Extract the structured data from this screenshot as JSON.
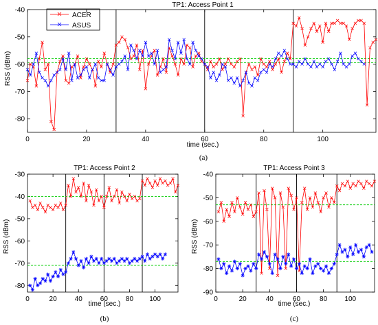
{
  "colors": {
    "acer": "#ff0000",
    "asus": "#0000ff",
    "mean_line": "#00cc00"
  },
  "chart_data": [
    {
      "type": "line",
      "title": "TP1: Access Point 1",
      "xlabel": "time (sec.)",
      "ylabel": "RSS (dBm)",
      "caption": "(a)",
      "xlim": [
        0,
        118
      ],
      "ylim": [
        -85,
        -40
      ],
      "xticks": [
        0,
        20,
        40,
        60,
        80,
        100
      ],
      "yticks": [
        -80,
        -70,
        -60,
        -50,
        -40
      ],
      "vlines": [
        30,
        60,
        90
      ],
      "mean_lines": [
        -58,
        -59.5
      ],
      "legend": {
        "position": "top-left",
        "entries": [
          "ACER",
          "ASUS"
        ]
      },
      "series": [
        {
          "name": "ACER",
          "color_key": "acer",
          "marker": "x",
          "x": [
            0,
            1,
            2,
            3,
            4,
            5,
            6,
            7,
            8,
            9,
            10,
            11,
            12,
            13,
            14,
            15,
            16,
            17,
            18,
            19,
            20,
            21,
            22,
            23,
            24,
            25,
            26,
            27,
            28,
            29,
            30,
            31,
            32,
            33,
            34,
            35,
            36,
            37,
            38,
            39,
            40,
            41,
            42,
            43,
            44,
            45,
            46,
            47,
            48,
            49,
            50,
            51,
            52,
            53,
            54,
            55,
            56,
            57,
            58,
            59,
            60,
            61,
            62,
            63,
            64,
            65,
            66,
            67,
            68,
            69,
            70,
            71,
            72,
            73,
            74,
            75,
            76,
            77,
            78,
            79,
            80,
            81,
            82,
            83,
            84,
            85,
            86,
            87,
            88,
            89,
            90,
            91,
            92,
            93,
            94,
            95,
            96,
            97,
            98,
            99,
            100,
            101,
            102,
            103,
            104,
            105,
            106,
            107,
            108,
            109,
            110,
            111,
            112,
            113,
            114,
            115,
            116,
            117,
            118
          ],
          "y": [
            -66,
            -60,
            -61,
            -68,
            -58,
            -52,
            -62,
            -60,
            -81,
            -84,
            -63,
            -59,
            -57,
            -66,
            -67,
            -61,
            -60,
            -57,
            -65,
            -61,
            -58,
            -60,
            -62,
            -68,
            -59,
            -61,
            -56,
            -60,
            -63,
            -60,
            -53,
            -52,
            -50,
            -51,
            -54,
            -58,
            -57,
            -53,
            -62,
            -55,
            -69,
            -60,
            -57,
            -55,
            -64,
            -61,
            -58,
            -63,
            -54,
            -57,
            -60,
            -64,
            -58,
            -60,
            -53,
            -54,
            -61,
            -57,
            -56,
            -59,
            -60,
            -62,
            -59,
            -61,
            -60,
            -58,
            -62,
            -60,
            -58,
            -60,
            -61,
            -59,
            -58,
            -79,
            -63,
            -60,
            -62,
            -61,
            -64,
            -58,
            -60,
            -61,
            -59,
            -62,
            -60,
            -58,
            -63,
            -59,
            -56,
            -58,
            -45,
            -46,
            -43,
            -47,
            -53,
            -50,
            -47,
            -45,
            -48,
            -46,
            -52,
            -45,
            -48,
            -45,
            -45,
            -44,
            -45,
            -45,
            -46,
            -51,
            -47,
            -45,
            -44,
            -44,
            -45,
            -75,
            -54,
            -52,
            -51
          ]
        },
        {
          "name": "ASUS",
          "color_key": "asus",
          "marker": "x",
          "x": [
            0,
            1,
            2,
            3,
            4,
            5,
            6,
            7,
            8,
            9,
            10,
            11,
            12,
            13,
            14,
            15,
            16,
            17,
            18,
            19,
            20,
            21,
            22,
            23,
            24,
            25,
            26,
            27,
            28,
            29,
            30,
            31,
            32,
            33,
            34,
            35,
            36,
            37,
            38,
            39,
            40,
            41,
            42,
            43,
            44,
            45,
            46,
            47,
            48,
            49,
            50,
            51,
            52,
            53,
            54,
            55,
            56,
            57,
            58,
            59,
            60,
            61,
            62,
            63,
            64,
            65,
            66,
            67,
            68,
            69,
            70,
            71,
            72,
            73,
            74,
            75,
            76,
            77,
            78,
            79,
            80,
            81,
            82,
            83,
            84,
            85,
            86,
            87,
            88,
            89,
            90,
            91,
            92,
            93,
            94,
            95,
            96,
            97,
            98,
            99,
            100,
            101,
            102,
            103,
            104,
            105,
            106,
            107,
            108,
            109,
            110,
            111,
            112,
            113,
            114
          ],
          "y": [
            -62,
            -64,
            -60,
            -56,
            -63,
            -65,
            -66,
            -68,
            -66,
            -64,
            -63,
            -62,
            -58,
            -62,
            -56,
            -66,
            -60,
            -65,
            -64,
            -62,
            -61,
            -65,
            -62,
            -60,
            -65,
            -66,
            -66,
            -60,
            -62,
            -64,
            -61,
            -60,
            -59,
            -57,
            -62,
            -53,
            -55,
            -58,
            -55,
            -57,
            -52,
            -57,
            -56,
            -60,
            -55,
            -63,
            -62,
            -61,
            -51,
            -55,
            -58,
            -52,
            -56,
            -51,
            -58,
            -60,
            -52,
            -55,
            -57,
            -58,
            -60,
            -61,
            -65,
            -63,
            -66,
            -64,
            -60,
            -61,
            -66,
            -65,
            -67,
            -65,
            -68,
            -66,
            -63,
            -67,
            -68,
            -65,
            -66,
            -63,
            -62,
            -63,
            -60,
            -61,
            -58,
            -56,
            -57,
            -55,
            -58,
            -60,
            -60,
            -61,
            -59,
            -60,
            -58,
            -60,
            -61,
            -59,
            -61,
            -60,
            -61,
            -59,
            -58,
            -60,
            -62,
            -59,
            -56,
            -60,
            -61,
            -60,
            -57,
            -56,
            -58,
            -59,
            -60
          ]
        }
      ]
    },
    {
      "type": "line",
      "title": "TP1: Access Point 2",
      "xlabel": "time (sec.)",
      "ylabel": "RSS (dBm)",
      "caption": "(b)",
      "xlim": [
        0,
        118
      ],
      "ylim": [
        -83,
        -30
      ],
      "xticks": [
        0,
        20,
        40,
        60,
        80,
        100
      ],
      "yticks": [
        -80,
        -70,
        -60,
        -50,
        -40,
        -30
      ],
      "vlines": [
        30,
        60,
        90
      ],
      "mean_lines": [
        -40,
        -71
      ],
      "series": [
        {
          "name": "ACER",
          "color_key": "acer",
          "marker": "x",
          "x": [
            2,
            4,
            6,
            8,
            10,
            12,
            14,
            16,
            18,
            20,
            22,
            24,
            26,
            28,
            30,
            32,
            34,
            36,
            38,
            40,
            42,
            44,
            46,
            48,
            50,
            52,
            54,
            56,
            58,
            60,
            62,
            64,
            66,
            68,
            70,
            72,
            74,
            76,
            78,
            80,
            82,
            84,
            86,
            88,
            90,
            92,
            94,
            96,
            98,
            100,
            102,
            104,
            106,
            108,
            110,
            112,
            114,
            116,
            118
          ],
          "y": [
            -42,
            -45,
            -44,
            -46,
            -43,
            -45,
            -47,
            -44,
            -45,
            -46,
            -44,
            -45,
            -43,
            -46,
            -44,
            -35,
            -40,
            -32,
            -38,
            -36,
            -40,
            -34,
            -42,
            -35,
            -38,
            -44,
            -37,
            -42,
            -40,
            -45,
            -40,
            -36,
            -42,
            -40,
            -37,
            -43,
            -38,
            -40,
            -42,
            -39,
            -41,
            -40,
            -42,
            -41,
            -33,
            -35,
            -32,
            -34,
            -36,
            -33,
            -35,
            -32,
            -34,
            -33,
            -35,
            -34,
            -32,
            -38,
            -35
          ]
        },
        {
          "name": "ASUS",
          "color_key": "asus",
          "marker": "*",
          "x": [
            2,
            4,
            6,
            8,
            10,
            12,
            14,
            16,
            18,
            20,
            22,
            24,
            26,
            28,
            30,
            32,
            34,
            36,
            38,
            40,
            42,
            44,
            46,
            48,
            50,
            52,
            54,
            56,
            58,
            60,
            62,
            64,
            66,
            68,
            70,
            72,
            74,
            76,
            78,
            80,
            82,
            84,
            86,
            88,
            90,
            92,
            94,
            96,
            98,
            100,
            102,
            104,
            106,
            108
          ],
          "y": [
            -80,
            -82,
            -77,
            -80,
            -79,
            -77,
            -78,
            -75,
            -78,
            -76,
            -74,
            -76,
            -73,
            -75,
            -74,
            -70,
            -68,
            -65,
            -68,
            -71,
            -69,
            -72,
            -68,
            -70,
            -67,
            -69,
            -68,
            -70,
            -68,
            -70,
            -69,
            -68,
            -69,
            -68,
            -70,
            -69,
            -68,
            -69,
            -68,
            -70,
            -69,
            -68,
            -69,
            -68,
            -67,
            -69,
            -66,
            -68,
            -67,
            -66,
            -67,
            -66,
            -68,
            -66
          ]
        }
      ]
    },
    {
      "type": "line",
      "title": "TP1: Access Point 3",
      "xlabel": "time (sec.)",
      "ylabel": "RSS (dBm)",
      "caption": "(c)",
      "xlim": [
        0,
        118
      ],
      "ylim": [
        -90,
        -40
      ],
      "xticks": [
        0,
        20,
        40,
        60,
        80,
        100
      ],
      "yticks": [
        -90,
        -80,
        -70,
        -60,
        -50,
        -40
      ],
      "vlines": [
        30,
        60,
        90
      ],
      "mean_lines": [
        -53,
        -77
      ],
      "series": [
        {
          "name": "ACER",
          "color_key": "acer",
          "marker": "x",
          "x": [
            2,
            4,
            6,
            8,
            10,
            12,
            14,
            16,
            18,
            20,
            22,
            24,
            26,
            28,
            30,
            32,
            34,
            36,
            38,
            40,
            42,
            44,
            46,
            48,
            50,
            52,
            54,
            56,
            58,
            60,
            62,
            64,
            66,
            68,
            70,
            72,
            74,
            76,
            78,
            80,
            82,
            84,
            86,
            88,
            90,
            92,
            94,
            96,
            98,
            100,
            102,
            104,
            106,
            108,
            110,
            112,
            114,
            116,
            118
          ],
          "y": [
            -56,
            -52,
            -60,
            -55,
            -58,
            -52,
            -56,
            -50,
            -54,
            -57,
            -52,
            -55,
            -53,
            -58,
            -56,
            -48,
            -82,
            -47,
            -55,
            -80,
            -46,
            -50,
            -83,
            -48,
            -54,
            -80,
            -46,
            -49,
            -55,
            -50,
            -81,
            -52,
            -46,
            -55,
            -50,
            -54,
            -48,
            -52,
            -56,
            -50,
            -48,
            -54,
            -50,
            -52,
            -45,
            -47,
            -44,
            -45,
            -43,
            -46,
            -44,
            -45,
            -43,
            -44,
            -46,
            -43,
            -44,
            -45,
            -43
          ]
        },
        {
          "name": "ASUS",
          "color_key": "asus",
          "marker": "*",
          "x": [
            2,
            4,
            6,
            8,
            10,
            12,
            14,
            16,
            18,
            20,
            22,
            24,
            26,
            28,
            30,
            32,
            34,
            36,
            38,
            40,
            42,
            44,
            46,
            48,
            50,
            52,
            54,
            56,
            58,
            60,
            62,
            64,
            66,
            68,
            70,
            72,
            74,
            76,
            78,
            80,
            82,
            84,
            86,
            88,
            90,
            92,
            94,
            96,
            98,
            100,
            102,
            104,
            106,
            108,
            110,
            112,
            114,
            116
          ],
          "y": [
            -76,
            -80,
            -78,
            -82,
            -79,
            -81,
            -77,
            -80,
            -78,
            -83,
            -80,
            -79,
            -81,
            -78,
            -80,
            -74,
            -76,
            -73,
            -75,
            -78,
            -82,
            -74,
            -76,
            -80,
            -75,
            -78,
            -74,
            -79,
            -76,
            -80,
            -78,
            -82,
            -79,
            -80,
            -76,
            -82,
            -79,
            -78,
            -80,
            -81,
            -79,
            -82,
            -80,
            -78,
            -74,
            -70,
            -73,
            -72,
            -75,
            -71,
            -74,
            -70,
            -73,
            -72,
            -75,
            -71,
            -70,
            -73
          ]
        }
      ]
    }
  ]
}
